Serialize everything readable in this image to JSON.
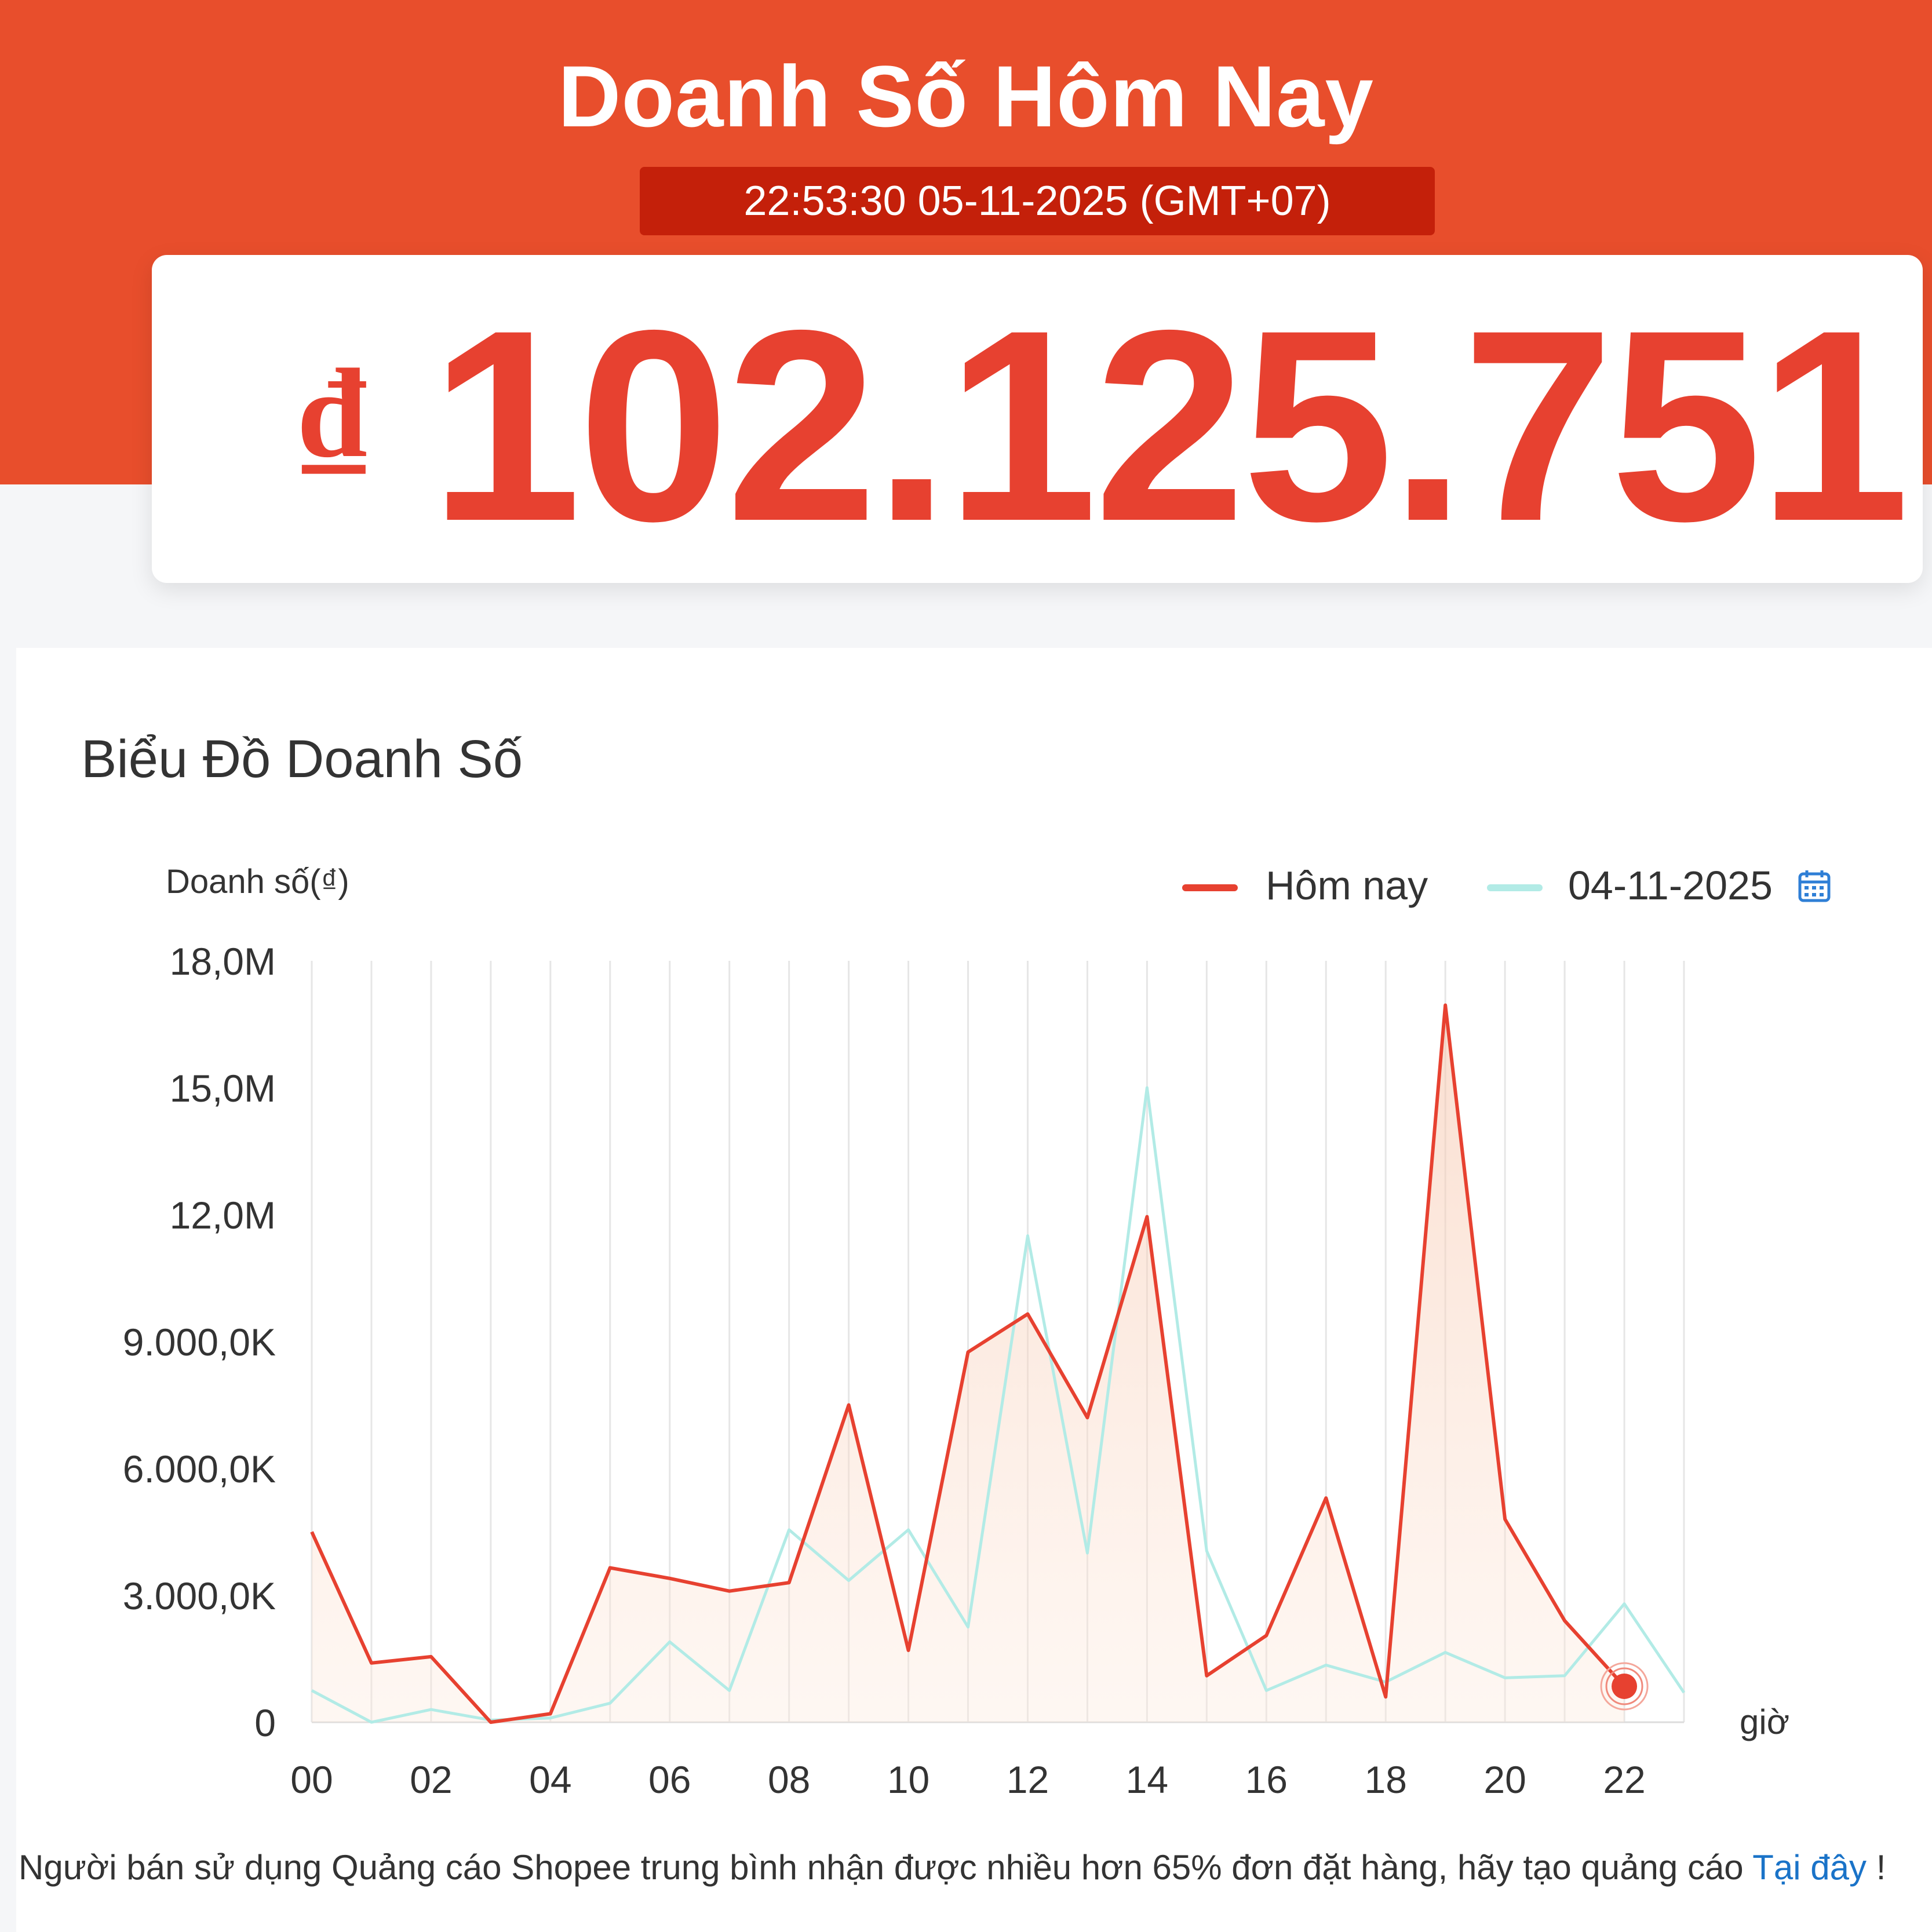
{
  "header": {
    "title": "Doanh Số Hôm Nay",
    "timestamp": "22:53:30 05-11-2025 (GMT+07)"
  },
  "total": {
    "currency": "₫",
    "amount": "102.125.751"
  },
  "colors": {
    "brand": "#e84e2c",
    "accent_dark": "#c4200a",
    "today": "#e74130",
    "compare": "#b2ebe6",
    "link": "#1a73c8"
  },
  "chart": {
    "title": "Biểu Đồ Doanh Số",
    "calendar_icon": "calendar-icon"
  },
  "chart_data": {
    "type": "line",
    "ylabel": "Doanh số(₫)",
    "xlabel": "giờ",
    "ylim": [
      0,
      18000000
    ],
    "yticks": [
      0,
      3000000,
      6000000,
      9000000,
      12000000,
      15000000,
      18000000
    ],
    "ytick_labels": [
      "0",
      "3.000,0K",
      "6.000,0K",
      "9.000,0K",
      "12,0M",
      "15,0M",
      "18,0M"
    ],
    "xlim": [
      0,
      23
    ],
    "x_tick_labels": [
      "00",
      "02",
      "04",
      "06",
      "08",
      "10",
      "12",
      "14",
      "16",
      "18",
      "20",
      "22"
    ],
    "grid": true,
    "legend_position": "top-right",
    "series": [
      {
        "name": "Hôm nay",
        "area_fill": true,
        "x": [
          0,
          1,
          2,
          3,
          4,
          5,
          6,
          7,
          8,
          9,
          10,
          11,
          12,
          13,
          14,
          15,
          16,
          17,
          18,
          19,
          20,
          21,
          22
        ],
        "values": [
          4500000,
          1400000,
          1550000,
          0,
          200000,
          3650000,
          3400000,
          3100000,
          3300000,
          7500000,
          1700000,
          8750000,
          9650000,
          7200000,
          11950000,
          1100000,
          2050000,
          5300000,
          600000,
          16950000,
          4800000,
          2400000,
          850000
        ]
      },
      {
        "name": "04-11-2025",
        "area_fill": false,
        "x": [
          0,
          1,
          2,
          3,
          4,
          5,
          6,
          7,
          8,
          9,
          10,
          11,
          12,
          13,
          14,
          15,
          16,
          17,
          18,
          19,
          20,
          21,
          22,
          23
        ],
        "values": [
          750000,
          0,
          300000,
          50000,
          100000,
          450000,
          1900000,
          750000,
          4550000,
          3350000,
          4550000,
          2250000,
          11500000,
          4000000,
          15000000,
          4050000,
          750000,
          1350000,
          950000,
          1650000,
          1050000,
          1100000,
          2800000,
          700000
        ]
      }
    ]
  },
  "footer": {
    "text": "Người bán sử dụng Quảng cáo Shopee trung bình nhận được nhiều hơn 65% đơn đặt hàng, hãy tạo quảng cáo ",
    "link": "Tại đây",
    "suffix": " !"
  }
}
